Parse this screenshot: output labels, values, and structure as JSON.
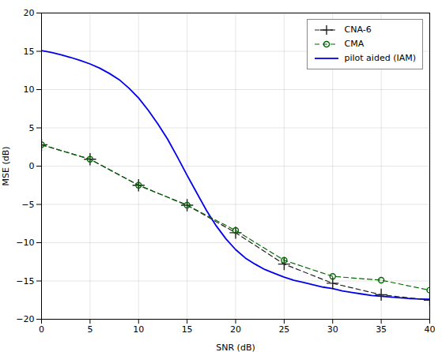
{
  "chart_data": {
    "type": "line",
    "xlabel": "SNR (dB)",
    "ylabel": "MSE (dB)",
    "xlim": [
      0,
      40
    ],
    "ylim": [
      -20,
      20
    ],
    "xticks": [
      0,
      5,
      10,
      15,
      20,
      25,
      30,
      35,
      40
    ],
    "yticks": [
      -20,
      -15,
      -10,
      -5,
      0,
      5,
      10,
      15,
      20
    ],
    "grid": true,
    "legend": "upper right",
    "series": [
      {
        "name": "CNA-6",
        "color": "#222222",
        "marker": "plus",
        "line_style": "dashed",
        "x": [
          0,
          5,
          10,
          15,
          20,
          25,
          30,
          35,
          40
        ],
        "values": [
          2.8,
          0.9,
          -2.5,
          -5.1,
          -8.7,
          -12.8,
          -15.3,
          -16.8,
          -17.5
        ]
      },
      {
        "name": "CMA",
        "color": "#006600",
        "marker": "circle",
        "line_style": "dashed",
        "x": [
          0,
          5,
          10,
          15,
          20,
          25,
          30,
          35,
          40
        ],
        "values": [
          2.8,
          0.9,
          -2.5,
          -5.1,
          -8.4,
          -12.3,
          -14.4,
          -14.9,
          -16.2
        ]
      },
      {
        "name": "pilot aided (IAM)",
        "color": "#0000ee",
        "marker": "none",
        "line_style": "solid",
        "x": [
          0,
          1,
          2,
          3,
          4,
          5,
          6,
          7,
          8,
          9,
          10,
          11,
          12,
          13,
          14,
          15,
          16,
          17,
          18,
          19,
          20,
          21,
          22,
          23,
          24,
          25,
          26,
          27,
          28,
          29,
          30,
          31,
          32,
          33,
          34,
          35,
          36,
          37,
          38,
          39,
          40
        ],
        "values": [
          15.1,
          14.85,
          14.55,
          14.2,
          13.8,
          13.35,
          12.8,
          12.1,
          11.3,
          10.2,
          8.9,
          7.3,
          5.5,
          3.5,
          1.2,
          -1.2,
          -3.5,
          -5.8,
          -7.8,
          -9.5,
          -10.9,
          -12.0,
          -12.8,
          -13.5,
          -14.0,
          -14.5,
          -14.9,
          -15.2,
          -15.5,
          -15.8,
          -16.0,
          -16.3,
          -16.5,
          -16.7,
          -16.9,
          -17.0,
          -17.1,
          -17.2,
          -17.3,
          -17.35,
          -17.4
        ]
      }
    ]
  }
}
